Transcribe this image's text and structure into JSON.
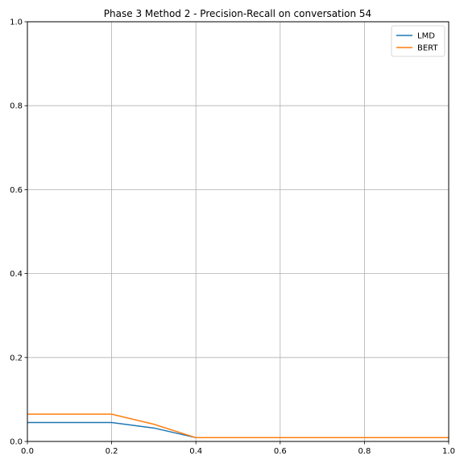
{
  "chart_data": {
    "type": "line",
    "title": "Phase 3 Method 2 - Precision-Recall on conversation 54",
    "xlabel": "",
    "ylabel": "",
    "xlim": [
      0.0,
      1.0
    ],
    "ylim": [
      0.0,
      1.0
    ],
    "x_ticks": [
      "0.0",
      "0.2",
      "0.4",
      "0.6",
      "0.8",
      "1.0"
    ],
    "y_ticks": [
      "0.0",
      "0.2",
      "0.4",
      "0.6",
      "0.8",
      "1.0"
    ],
    "grid": true,
    "legend_position": "top-right",
    "x": [
      0.0,
      0.1,
      0.2,
      0.3,
      0.4,
      0.5,
      0.6,
      0.7,
      0.8,
      0.9,
      1.0
    ],
    "series": [
      {
        "name": "LMD",
        "color": "#1f77b4",
        "values": [
          0.045,
          0.045,
          0.045,
          0.032,
          0.009,
          0.009,
          0.009,
          0.009,
          0.009,
          0.009,
          0.009
        ]
      },
      {
        "name": "BERT",
        "color": "#ff7f0e",
        "values": [
          0.065,
          0.065,
          0.065,
          0.041,
          0.009,
          0.009,
          0.009,
          0.009,
          0.009,
          0.009,
          0.009
        ]
      }
    ]
  }
}
